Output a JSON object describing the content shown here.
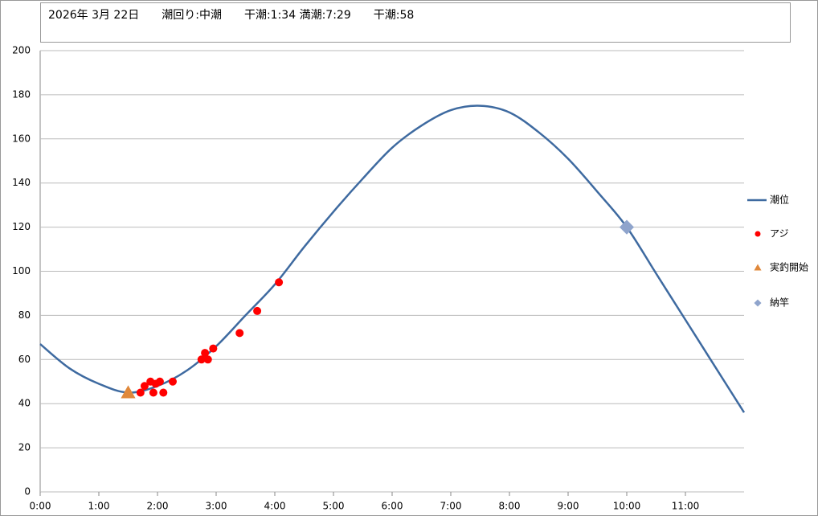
{
  "chart_data": {
    "type": "line",
    "title": "2026年 3月 22日　　潮回り:中潮　　干潮:1:34 満潮:7:29　　干潮:58",
    "xlim": [
      0,
      12
    ],
    "ylim": [
      0,
      200
    ],
    "xticks": [
      {
        "value": 0,
        "label": "0:00"
      },
      {
        "value": 1,
        "label": "1:00"
      },
      {
        "value": 2,
        "label": "2:00"
      },
      {
        "value": 3,
        "label": "3:00"
      },
      {
        "value": 4,
        "label": "4:00"
      },
      {
        "value": 5,
        "label": "5:00"
      },
      {
        "value": 6,
        "label": "6:00"
      },
      {
        "value": 7,
        "label": "7:00"
      },
      {
        "value": 8,
        "label": "8:00"
      },
      {
        "value": 9,
        "label": "9:00"
      },
      {
        "value": 10,
        "label": "10:00"
      },
      {
        "value": 11,
        "label": "11:00"
      }
    ],
    "yticks": [
      0,
      20,
      40,
      60,
      80,
      100,
      120,
      140,
      160,
      180,
      200
    ],
    "grid": true,
    "legend": "right",
    "series": [
      {
        "name": "潮位",
        "kind": "line",
        "color": "#3e6aa0",
        "x": [
          0,
          0.5,
          1,
          1.5,
          2,
          2.5,
          3,
          3.5,
          4,
          4.5,
          5,
          5.5,
          6,
          6.5,
          7,
          7.5,
          8,
          8.5,
          9,
          9.5,
          10,
          10.5,
          11,
          11.5,
          12
        ],
        "values": [
          67,
          56,
          49,
          45,
          48,
          55,
          66,
          80,
          94,
          111,
          127,
          142,
          156,
          166,
          173,
          175,
          172,
          163,
          151,
          136,
          120,
          99,
          78,
          57,
          36
        ]
      },
      {
        "name": "アジ",
        "kind": "circle",
        "color": "#ff0000",
        "x": [
          1.71,
          1.78,
          1.88,
          1.93,
          1.97,
          2.04,
          2.1,
          2.26,
          2.75,
          2.81,
          2.86,
          2.95,
          3.4,
          3.7,
          4.07
        ],
        "values": [
          45,
          48,
          50,
          45,
          49,
          50,
          45,
          50,
          60,
          63,
          60,
          65,
          72,
          82,
          95
        ]
      },
      {
        "name": "実釣開始",
        "kind": "triangle",
        "color": "#e0883a",
        "x": [
          1.5
        ],
        "values": [
          45
        ]
      },
      {
        "name": "納竿",
        "kind": "diamond",
        "color": "#8fa4cc",
        "x": [
          10
        ],
        "values": [
          120
        ]
      }
    ]
  }
}
